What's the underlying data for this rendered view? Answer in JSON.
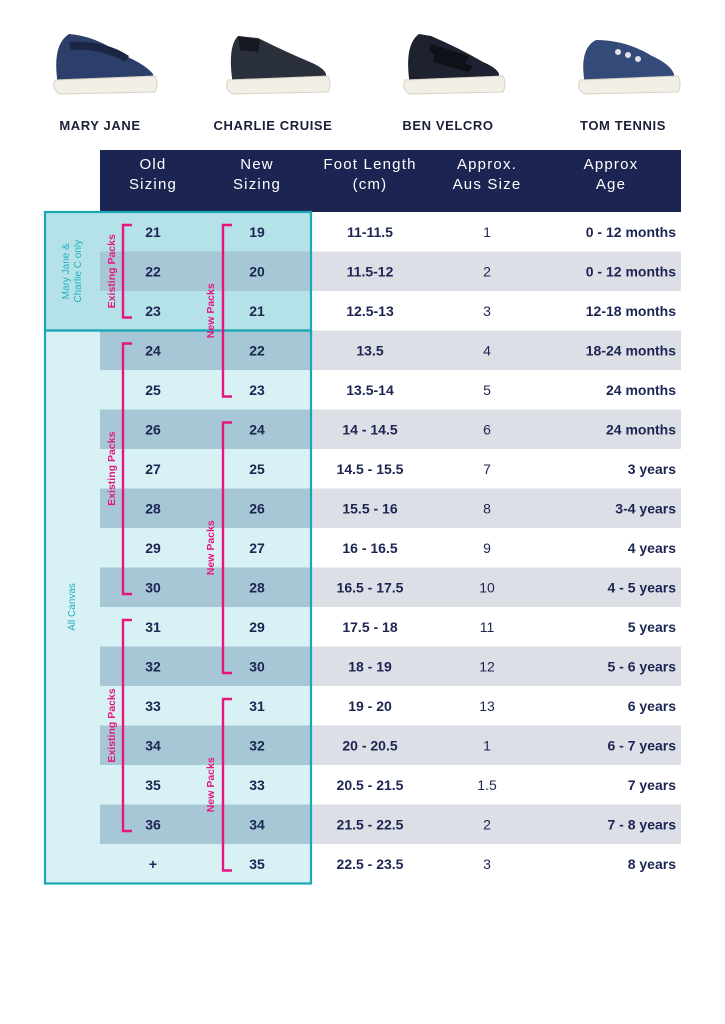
{
  "shoes": [
    {
      "name": "MARY JANE",
      "icon": "mary-jane-shoe-icon"
    },
    {
      "name": "CHARLIE CRUISE",
      "icon": "slip-on-shoe-icon"
    },
    {
      "name": "BEN VELCRO",
      "icon": "velcro-shoe-icon"
    },
    {
      "name": "TOM TENNIS",
      "icon": "tennis-shoe-icon"
    }
  ],
  "table": {
    "headers": [
      [
        "Old",
        "Sizing"
      ],
      [
        "New",
        "Sizing"
      ],
      [
        "Foot Length",
        "(cm)"
      ],
      [
        "Approx.",
        "Aus Size"
      ],
      [
        "Approx",
        "Age"
      ]
    ],
    "rows": [
      [
        "21",
        "19",
        "11-11.5",
        "1",
        "0 - 12 months"
      ],
      [
        "22",
        "20",
        "11.5-12",
        "2",
        "0 - 12 months"
      ],
      [
        "23",
        "21",
        "12.5-13",
        "3",
        "12-18 months"
      ],
      [
        "24",
        "22",
        "13.5",
        "4",
        "18-24 months"
      ],
      [
        "25",
        "23",
        "13.5-14",
        "5",
        "24 months"
      ],
      [
        "26",
        "24",
        "14 - 14.5",
        "6",
        "24 months"
      ],
      [
        "27",
        "25",
        "14.5 - 15.5",
        "7",
        "3 years"
      ],
      [
        "28",
        "26",
        "15.5 - 16",
        "8",
        "3-4 years"
      ],
      [
        "29",
        "27",
        "16 - 16.5",
        "9",
        "4 years"
      ],
      [
        "30",
        "28",
        "16.5 - 17.5",
        "10",
        "4 - 5 years"
      ],
      [
        "31",
        "29",
        "17.5 - 18",
        "11",
        "5 years"
      ],
      [
        "32",
        "30",
        "18 - 19",
        "12",
        "5 - 6 years"
      ],
      [
        "33",
        "31",
        "19 - 20",
        "13",
        "6 years"
      ],
      [
        "34",
        "32",
        "20 - 20.5",
        "1",
        "6 - 7 years"
      ],
      [
        "35",
        "33",
        "20.5 - 21.5",
        "1.5",
        "7  years"
      ],
      [
        "36",
        "34",
        "21.5 - 22.5",
        "2",
        "7 - 8 years"
      ],
      [
        "+",
        "35",
        "22.5 - 23.5",
        "3",
        "8 years"
      ]
    ],
    "groups": [
      {
        "lines": [
          "Mary Jane &",
          "Charlie C only"
        ],
        "first_row": 0,
        "last_row": 2
      },
      {
        "lines": [
          "All Canvas"
        ],
        "first_row": 3,
        "last_row": 16
      }
    ],
    "old_packs": [
      {
        "label": "Existing Packs",
        "first_row": 0,
        "last_row": 2
      },
      {
        "label": "Existing Packs",
        "first_row": 3,
        "last_row": 9
      },
      {
        "label": "Existing Packs",
        "first_row": 10,
        "last_row": 15
      }
    ],
    "new_packs": [
      {
        "label": "New Packs",
        "first_row": 0,
        "last_row": 4
      },
      {
        "label": "New Packs",
        "first_row": 5,
        "last_row": 11
      },
      {
        "label": "New Packs",
        "first_row": 12,
        "last_row": 16
      }
    ]
  },
  "colors": {
    "navy": "#1c2552",
    "stripe": "#dddfe7",
    "teal_light": "#d8f1f4",
    "teal_mid": "#b5e2e9",
    "teal_dark": "#a7c7d6",
    "teal_border": "#1ba7b4",
    "magenta": "#e6157f"
  }
}
